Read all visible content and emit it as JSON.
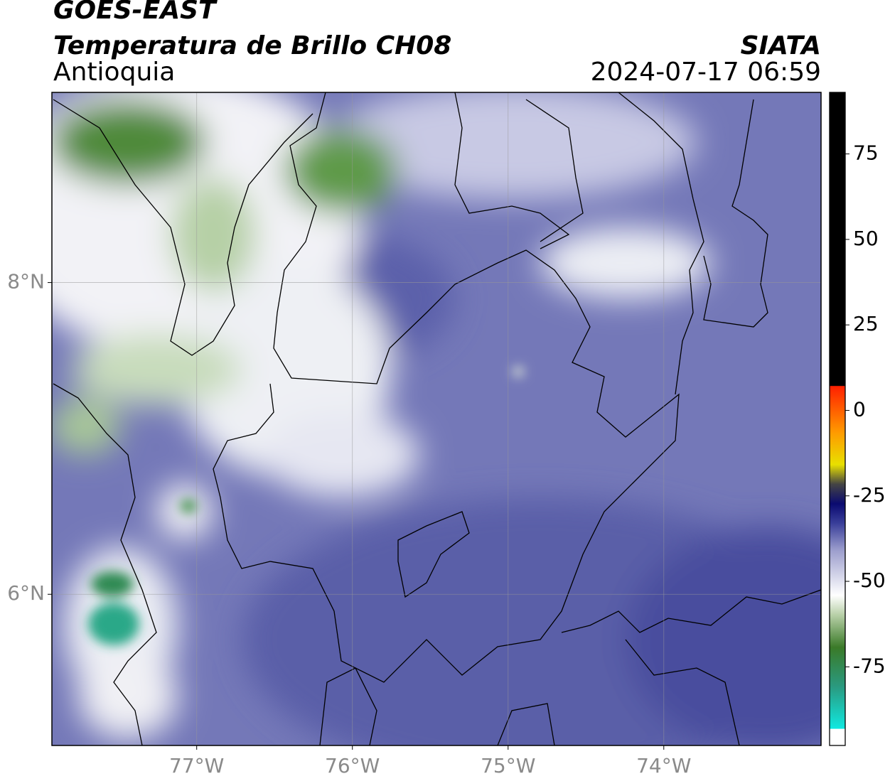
{
  "header": {
    "title": "GOES-EAST",
    "subtitle": "Temperatura de Brillo CH08",
    "region": "Antioquia",
    "source": "SIATA",
    "timestamp": "2024-07-17 06:59"
  },
  "map": {
    "lonlim": [
      -77.93,
      -72.99
    ],
    "latlim": [
      5.03,
      9.22
    ],
    "lon_ticks": [
      {
        "value": -77,
        "label": "77°W"
      },
      {
        "value": -76,
        "label": "76°W"
      },
      {
        "value": -75,
        "label": "75°W"
      },
      {
        "value": -74,
        "label": "74°W"
      }
    ],
    "lat_ticks": [
      {
        "value": 8,
        "label": "8°N"
      },
      {
        "value": 6,
        "label": "6°N"
      }
    ],
    "grid": true
  },
  "colorbar": {
    "lim": [
      -98,
      93
    ],
    "ticks": [
      75,
      50,
      25,
      0,
      -25,
      -50,
      -75
    ]
  }
}
